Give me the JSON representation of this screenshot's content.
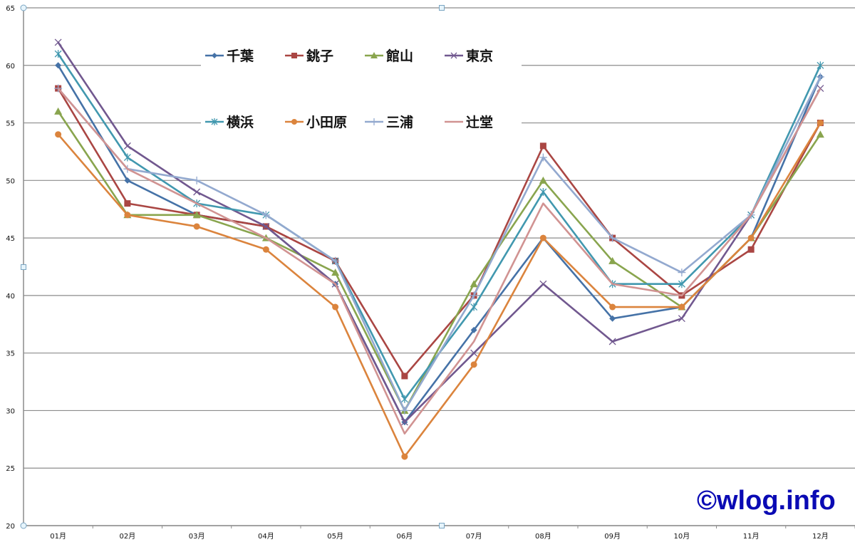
{
  "chart_data": {
    "type": "line",
    "title": "",
    "xlabel": "",
    "ylabel": "",
    "ylim": [
      20,
      65
    ],
    "yticks": [
      20,
      25,
      30,
      35,
      40,
      45,
      50,
      55,
      60,
      65
    ],
    "grid": true,
    "legend_position": "top-inside",
    "categories": [
      "01月",
      "02月",
      "03月",
      "04月",
      "05月",
      "06月",
      "07月",
      "08月",
      "09月",
      "10月",
      "11月",
      "12月"
    ],
    "series": [
      {
        "name": "千葉",
        "color": "#4572a7",
        "marker": "diamond",
        "values": [
          60,
          50,
          47,
          46,
          41,
          29,
          37,
          45,
          38,
          39,
          45,
          59
        ]
      },
      {
        "name": "銚子",
        "color": "#aa4643",
        "marker": "square",
        "values": [
          58,
          48,
          47,
          46,
          43,
          33,
          40,
          53,
          45,
          40,
          44,
          55
        ]
      },
      {
        "name": "館山",
        "color": "#89a54e",
        "marker": "triangle",
        "values": [
          56,
          47,
          47,
          45,
          42,
          30,
          41,
          50,
          43,
          39,
          45,
          54
        ]
      },
      {
        "name": "東京",
        "color": "#71588f",
        "marker": "x",
        "values": [
          62,
          53,
          49,
          46,
          41,
          29,
          35,
          41,
          36,
          38,
          47,
          58
        ]
      },
      {
        "name": "横浜",
        "color": "#4198af",
        "marker": "star",
        "values": [
          61,
          52,
          48,
          47,
          43,
          31,
          39,
          49,
          41,
          41,
          47,
          60
        ]
      },
      {
        "name": "小田原",
        "color": "#db843d",
        "marker": "circle",
        "values": [
          54,
          47,
          46,
          44,
          39,
          26,
          34,
          45,
          39,
          39,
          45,
          55
        ]
      },
      {
        "name": "三浦",
        "color": "#93a9cf",
        "marker": "plus",
        "values": [
          58,
          51,
          50,
          47,
          43,
          30,
          40,
          52,
          45,
          42,
          47,
          59
        ]
      },
      {
        "name": "辻堂",
        "color": "#d19392",
        "marker": "none",
        "values": [
          58,
          51,
          48,
          45,
          41,
          28,
          36,
          48,
          41,
          40,
          47,
          58
        ]
      }
    ]
  },
  "watermark": "©wlog.info"
}
